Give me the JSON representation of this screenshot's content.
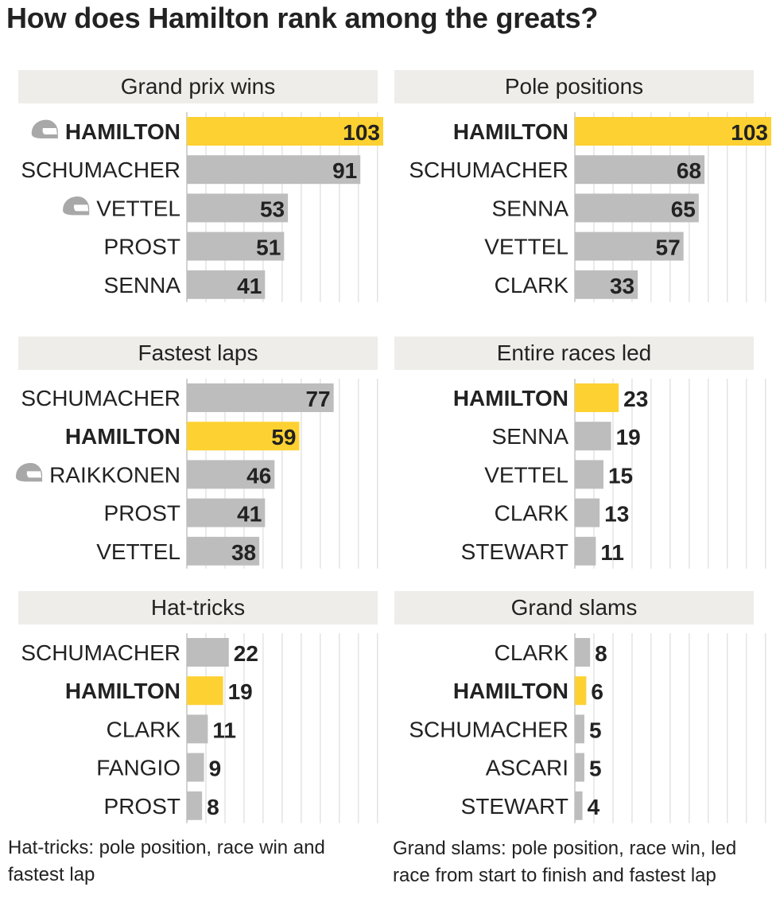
{
  "title": "How does Hamilton rank among the greats?",
  "colors": {
    "highlight": "#fdd131",
    "bar": "#bdbdbd",
    "header_bg": "#eeede9",
    "grid": "#d6d6d6",
    "text": "#222222",
    "helmet": "#a8a8a8"
  },
  "notes": {
    "hat_tricks": "Hat-tricks: pole position, race win and fastest lap",
    "grand_slams": "Grand slams: pole position, race win, led race from start to finish and fastest lap"
  },
  "chart_data": [
    {
      "type": "bar",
      "orientation": "horizontal",
      "title": "Grand prix wins",
      "categories": [
        "HAMILTON",
        "SCHUMACHER",
        "VETTEL",
        "PROST",
        "SENNA"
      ],
      "values": [
        103,
        91,
        53,
        51,
        41
      ],
      "highlight": [
        "HAMILTON"
      ],
      "helmet_icon": [
        "HAMILTON",
        "VETTEL"
      ],
      "xlim": [
        0,
        103
      ]
    },
    {
      "type": "bar",
      "orientation": "horizontal",
      "title": "Pole positions",
      "categories": [
        "HAMILTON",
        "SCHUMACHER",
        "SENNA",
        "VETTEL",
        "CLARK"
      ],
      "values": [
        103,
        68,
        65,
        57,
        33
      ],
      "highlight": [
        "HAMILTON"
      ],
      "helmet_icon": [],
      "xlim": [
        0,
        103
      ]
    },
    {
      "type": "bar",
      "orientation": "horizontal",
      "title": "Fastest laps",
      "categories": [
        "SCHUMACHER",
        "HAMILTON",
        "RAIKKONEN",
        "PROST",
        "VETTEL"
      ],
      "values": [
        77,
        59,
        46,
        41,
        38
      ],
      "highlight": [
        "HAMILTON"
      ],
      "helmet_icon": [
        "RAIKKONEN"
      ],
      "xlim": [
        0,
        103
      ]
    },
    {
      "type": "bar",
      "orientation": "horizontal",
      "title": "Entire races led",
      "categories": [
        "HAMILTON",
        "SENNA",
        "VETTEL",
        "CLARK",
        "STEWART"
      ],
      "values": [
        23,
        19,
        15,
        13,
        11
      ],
      "highlight": [
        "HAMILTON"
      ],
      "helmet_icon": [],
      "xlim": [
        0,
        103
      ]
    },
    {
      "type": "bar",
      "orientation": "horizontal",
      "title": "Hat-tricks",
      "categories": [
        "SCHUMACHER",
        "HAMILTON",
        "CLARK",
        "FANGIO",
        "PROST"
      ],
      "values": [
        22,
        19,
        11,
        9,
        8
      ],
      "highlight": [
        "HAMILTON"
      ],
      "helmet_icon": [],
      "xlim": [
        0,
        103
      ]
    },
    {
      "type": "bar",
      "orientation": "horizontal",
      "title": "Grand slams",
      "categories": [
        "CLARK",
        "HAMILTON",
        "SCHUMACHER",
        "ASCARI",
        "STEWART"
      ],
      "values": [
        8,
        6,
        5,
        5,
        4
      ],
      "highlight": [
        "HAMILTON"
      ],
      "helmet_icon": [],
      "xlim": [
        0,
        103
      ]
    }
  ]
}
